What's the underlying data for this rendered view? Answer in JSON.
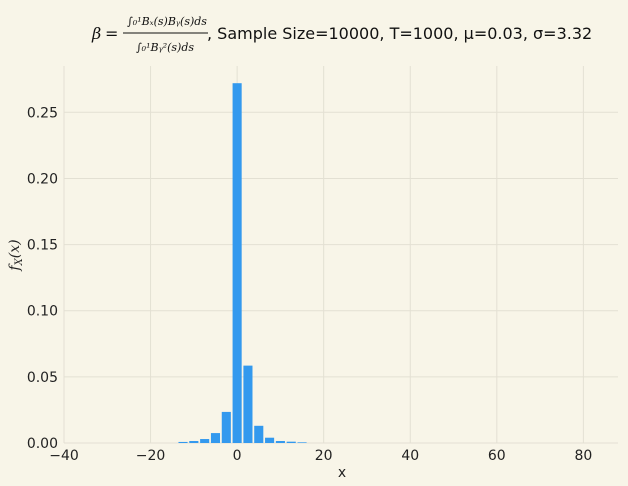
{
  "chart_data": {
    "type": "bar",
    "title": {
      "beta_symbol": "β",
      "equals": "=",
      "numerator": "∫₀¹Bₓ(s)Bᵧ(s)ds",
      "denominator": "∫₀¹Bᵧ²(s)ds",
      "params": ", Sample Size=10000, T=1000, μ=0.03, σ=3.32"
    },
    "xlabel": "x",
    "ylabel": "f_X(x)",
    "ylabel_main": "f",
    "ylabel_sub": "X",
    "ylabel_arg": "(x)",
    "xlim": [
      -40,
      88
    ],
    "ylim": [
      0,
      0.285
    ],
    "xticks": [
      -40,
      -20,
      0,
      20,
      40,
      60,
      80
    ],
    "xtick_labels": [
      "−40",
      "−20",
      "0",
      "20",
      "40",
      "60",
      "80"
    ],
    "yticks": [
      0,
      0.05,
      0.1,
      0.15,
      0.2,
      0.25
    ],
    "ytick_labels": [
      "0.00",
      "0.05",
      "0.10",
      "0.15",
      "0.20",
      "0.25"
    ],
    "bin_width": 2.5,
    "bar_width": 2.1,
    "bins": [
      {
        "x": -12.5,
        "y": 0.0008
      },
      {
        "x": -10.0,
        "y": 0.0015
      },
      {
        "x": -7.5,
        "y": 0.003
      },
      {
        "x": -5.0,
        "y": 0.0075
      },
      {
        "x": -2.5,
        "y": 0.0235
      },
      {
        "x": 0.0,
        "y": 0.272
      },
      {
        "x": 2.5,
        "y": 0.0585
      },
      {
        "x": 5.0,
        "y": 0.013
      },
      {
        "x": 7.5,
        "y": 0.004
      },
      {
        "x": 10.0,
        "y": 0.0015
      },
      {
        "x": 12.5,
        "y": 0.001
      },
      {
        "x": 15.0,
        "y": 0.0005
      }
    ],
    "grid": true,
    "colors": {
      "bar": "#3399ee",
      "background": "#f8f5e8",
      "grid": "#e3e0d3",
      "text": "#222222"
    }
  }
}
